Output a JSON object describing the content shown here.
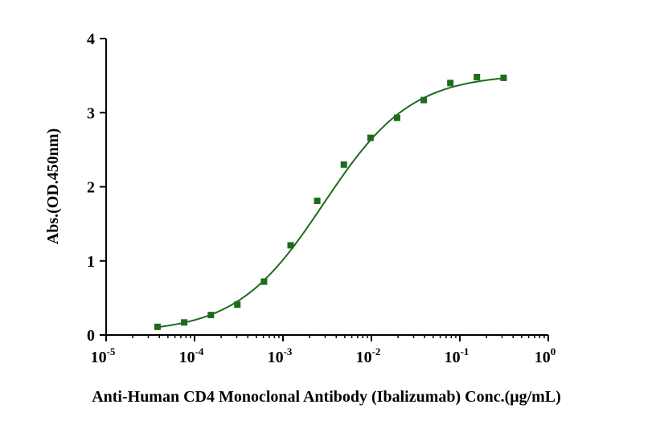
{
  "chart_data": {
    "type": "scatter",
    "xlabel": "Anti-Human CD4 Monoclonal Antibody (Ibalizumab)  Conc.(μg/mL)",
    "ylabel": "Abs.(OD.450nm)",
    "x_scale": "log",
    "xlim": [
      1e-05,
      1
    ],
    "ylim": [
      0,
      4
    ],
    "x_ticks": [
      {
        "base": "10",
        "exp": "-5",
        "value": 1e-05
      },
      {
        "base": "10",
        "exp": "-4",
        "value": 0.0001
      },
      {
        "base": "10",
        "exp": "-3",
        "value": 0.001
      },
      {
        "base": "10",
        "exp": "-2",
        "value": 0.01
      },
      {
        "base": "10",
        "exp": "-1",
        "value": 0.1
      },
      {
        "base": "10",
        "exp": "0",
        "value": 1
      }
    ],
    "y_ticks": [
      "0",
      "1",
      "2",
      "3",
      "4"
    ],
    "grid": false,
    "color": "#1e6b1e",
    "series": [
      {
        "marker": "square",
        "x": [
          3.81e-05,
          7.63e-05,
          0.000153,
          0.000305,
          0.00061,
          0.00122,
          0.00244,
          0.00488,
          0.00977,
          0.0195,
          0.0391,
          0.0781,
          0.156,
          0.3125
        ],
        "y": [
          0.11,
          0.17,
          0.27,
          0.41,
          0.72,
          1.21,
          1.81,
          2.3,
          2.66,
          2.93,
          3.17,
          3.4,
          3.48,
          3.47
        ]
      }
    ],
    "fit_curve": {
      "type": "4PL",
      "bottom": 0.03,
      "top": 3.52,
      "ec50": 0.00289,
      "hill": 0.88
    }
  }
}
